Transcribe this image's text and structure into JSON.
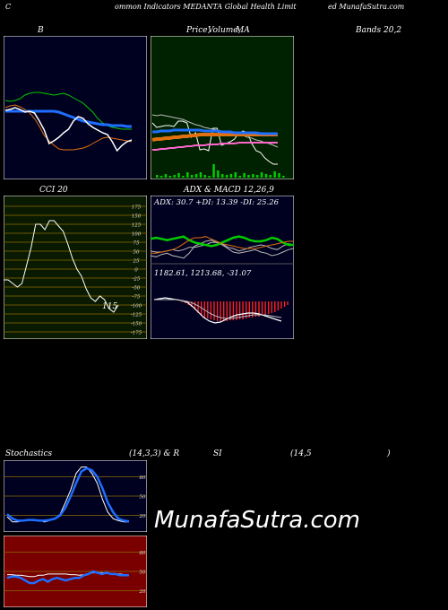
{
  "header": {
    "left": "C",
    "middle": "ommon  Indicators MEDANTA Global Health Limit",
    "right": "ed MunafaSutra.com"
  },
  "labels": {
    "bb": "B",
    "price": "Price,",
    "volume": "Volume,",
    "ma": "MA",
    "bands": "Bands 20,2",
    "cci": "CCI 20",
    "adx": "ADX  & MACD 12,26,9",
    "stoch": "Stochastics",
    "stoch_params": "(14,3,3) & R",
    "si": "SI",
    "rsi_params": "(14,5",
    "close_paren": ")"
  },
  "readouts": {
    "adx": "ADX: 30.7 +DI: 13.39 -DI: 25.26",
    "macd": "1182.61,  1213.68,  -31.07",
    "cci_value": "115"
  },
  "watermark": "MunafaSutra.com",
  "colors": {
    "bg": "#000000",
    "bb_bg": "#000020",
    "price_bg": "#002200",
    "cci_bg": "#0a1a00",
    "adx_bg": "#000020",
    "stoch_bg": "#000020",
    "rsi_bg": "#7a0000",
    "blue": "#1e6eff",
    "green": "#00cc00",
    "orange": "#e07010",
    "white": "#ffffff",
    "pink": "#ff66cc",
    "red": "#ff2222",
    "gridline": "#8a6a00"
  },
  "chart_data": [
    {
      "type": "line",
      "panel": "bollinger",
      "series": [
        {
          "values": [
            72,
            73,
            72,
            70,
            66,
            64,
            63,
            63,
            64,
            65,
            66,
            65,
            64,
            66,
            69,
            72,
            75,
            80,
            85,
            92,
            97,
            100,
            102,
            103,
            104,
            104,
            104
          ]
        },
        {
          "values": [
            84,
            84,
            84,
            84,
            84,
            84,
            84,
            84,
            84,
            84,
            84,
            85,
            87,
            89,
            91,
            93,
            95,
            96,
            97,
            98,
            99,
            99,
            100,
            100,
            100,
            101,
            101
          ]
        },
        {
          "values": [
            80,
            78,
            77,
            79,
            82,
            86,
            92,
            101,
            111,
            117,
            122,
            126,
            127,
            127,
            127,
            126,
            125,
            123,
            120,
            117,
            114,
            113,
            114,
            115,
            116,
            117,
            118
          ]
        },
        {
          "values": [
            83,
            82,
            80,
            82,
            85,
            84,
            86,
            95,
            105,
            120,
            117,
            113,
            108,
            104,
            95,
            90,
            92,
            98,
            102,
            105,
            108,
            110,
            118,
            128,
            122,
            118,
            116
          ]
        }
      ]
    },
    {
      "type": "line",
      "panel": "price-volume-ma",
      "series": [
        {
          "values": [
            97,
            102,
            101,
            100,
            100,
            101,
            95,
            95,
            97,
            113,
            108,
            127,
            126,
            128,
            103,
            103,
            122,
            120,
            118,
            115,
            108,
            106,
            108,
            120,
            128,
            130,
            136,
            140,
            143,
            143
          ]
        },
        {
          "values": [
            88,
            89,
            88,
            89,
            90,
            91,
            92,
            93,
            95,
            97,
            99,
            100,
            102,
            103,
            104,
            105,
            106,
            107,
            108,
            109,
            110,
            111,
            113,
            114,
            116,
            117,
            119,
            120,
            122,
            124
          ]
        },
        {
          "values": [
            116,
            115,
            115,
            114,
            114,
            113,
            113,
            112,
            112,
            111,
            111,
            110,
            110,
            110,
            110,
            110,
            110,
            110,
            110,
            110,
            110,
            110,
            110,
            110,
            110,
            110,
            110,
            110,
            110,
            110
          ]
        },
        {
          "values": [
            127,
            127,
            126,
            126,
            125,
            125,
            124,
            124,
            123,
            123,
            122,
            122,
            122,
            121,
            121,
            121,
            120,
            120,
            120,
            120,
            119,
            119,
            119,
            119,
            119,
            119,
            119,
            119,
            119,
            119
          ]
        },
        {
          "values": [
            107,
            107,
            106,
            106,
            106,
            105,
            105,
            105,
            105,
            105,
            105,
            105,
            106,
            106,
            106,
            106,
            107,
            107,
            107,
            108,
            108,
            108,
            108,
            108,
            108,
            109,
            109,
            109,
            109,
            109
          ]
        }
      ],
      "volume": [
        3,
        2,
        4,
        2,
        3,
        5,
        2,
        6,
        3,
        4,
        6,
        3,
        2,
        15,
        8,
        4,
        3,
        4,
        6,
        2,
        5,
        3,
        4,
        3,
        6,
        4,
        3,
        7,
        5,
        2
      ]
    },
    {
      "type": "line",
      "panel": "cci",
      "yticks": [
        175,
        150,
        125,
        100,
        75,
        50,
        25,
        0,
        -25,
        -50,
        -75,
        -100,
        -125,
        -150,
        -175
      ],
      "ylim": [
        -175,
        175
      ],
      "series": [
        {
          "values": [
            -30,
            -30,
            -40,
            -50,
            -40,
            10,
            60,
            125,
            125,
            110,
            135,
            135,
            120,
            105,
            70,
            30,
            0,
            -20,
            -55,
            -80,
            -90,
            -75,
            -85,
            -110,
            -120,
            -100
          ]
        }
      ]
    },
    {
      "type": "line",
      "panel": "adx",
      "series": [
        {
          "values": [
            20,
            19,
            19,
            20,
            21,
            20,
            21,
            23,
            23,
            24,
            25,
            27,
            27,
            26,
            23,
            22,
            20,
            21,
            23,
            24,
            25,
            24,
            22,
            21,
            24,
            26,
            25
          ]
        },
        {
          "values": [
            16,
            15,
            17,
            18,
            16,
            15,
            14,
            18,
            24,
            26,
            28,
            29,
            27,
            25,
            22,
            19,
            18,
            19,
            20,
            21,
            19,
            18,
            16,
            17,
            19,
            21,
            22
          ]
        },
        {
          "values": [
            30,
            31,
            30,
            29,
            30,
            31,
            32,
            29,
            27,
            26,
            25,
            24,
            25,
            27,
            29,
            31,
            32,
            31,
            29,
            28,
            28,
            29,
            31,
            30,
            27,
            25,
            25
          ]
        },
        {
          "values": [
            18,
            18,
            19,
            20,
            21,
            23,
            26,
            29,
            31,
            31,
            32,
            30,
            28,
            26,
            25,
            24,
            23,
            22,
            22,
            22,
            23,
            24,
            25,
            26,
            27,
            28,
            28
          ]
        }
      ]
    },
    {
      "type": "bar",
      "panel": "macd",
      "series": [
        {
          "name": "histogram",
          "values": [
            0,
            0,
            0,
            0,
            0,
            0,
            0,
            0,
            -1,
            -2,
            -4,
            -6,
            -9,
            -13,
            -16,
            -18,
            -19,
            -20,
            -21,
            -22,
            -22,
            -22,
            -22,
            -21,
            -21,
            -21,
            -20,
            -20,
            -19,
            -18,
            -18,
            -17,
            -17,
            -16,
            -15,
            -14,
            -13,
            -12,
            -10,
            -8,
            -6,
            -4
          ]
        },
        {
          "name": "macd",
          "values": [
            0,
            1,
            2,
            1,
            0,
            -1,
            -3,
            -8,
            -14,
            -20,
            -24,
            -26,
            -25,
            -22,
            -19,
            -17,
            -16,
            -15,
            -15,
            -16,
            -18,
            -20,
            -22,
            -24
          ]
        },
        {
          "name": "signal",
          "values": [
            0,
            0,
            0,
            0,
            0,
            -1,
            -2,
            -4,
            -7,
            -11,
            -15,
            -18,
            -20,
            -21,
            -21,
            -20,
            -19,
            -18,
            -17,
            -17,
            -17,
            -18,
            -19,
            -20
          ]
        }
      ]
    },
    {
      "type": "line",
      "panel": "stochastics",
      "yticks": [
        80,
        50,
        20
      ],
      "ylim": [
        0,
        100
      ],
      "series": [
        {
          "values": [
            18,
            10,
            10,
            12,
            14,
            12,
            13,
            10,
            12,
            15,
            22,
            40,
            60,
            85,
            95,
            95,
            85,
            70,
            45,
            25,
            15,
            12,
            10,
            10
          ]
        },
        {
          "values": [
            22,
            15,
            12,
            12,
            13,
            13,
            12,
            12,
            13,
            15,
            20,
            32,
            50,
            70,
            88,
            93,
            90,
            80,
            62,
            40,
            25,
            15,
            12,
            11
          ]
        }
      ]
    },
    {
      "type": "line",
      "panel": "rsi",
      "yticks": [
        80,
        50,
        20
      ],
      "ylim": [
        0,
        100
      ],
      "series": [
        {
          "values": [
            45,
            45,
            44,
            44,
            43,
            42,
            42,
            44,
            44,
            46,
            46,
            46,
            46,
            46,
            45,
            45,
            44,
            45,
            46,
            48,
            48,
            48,
            47,
            46,
            46,
            46,
            45,
            45
          ]
        },
        {
          "values": [
            40,
            42,
            42,
            40,
            36,
            32,
            32,
            36,
            38,
            34,
            38,
            40,
            38,
            36,
            38,
            40,
            40,
            44,
            46,
            50,
            48,
            46,
            48,
            46,
            46,
            44,
            44,
            44
          ]
        }
      ]
    }
  ]
}
